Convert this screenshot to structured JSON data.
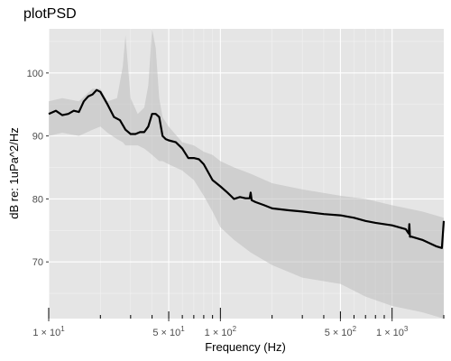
{
  "chart_data": {
    "type": "line",
    "title": "plotPSD",
    "xlabel": "Frequency (Hz)",
    "ylabel": "dB re: 1uPa^2/Hz",
    "x_scale": "log",
    "xlim": [
      10,
      2000
    ],
    "ylim": [
      61,
      107
    ],
    "y_ticks": [
      70,
      80,
      90,
      100
    ],
    "y_tick_labels": [
      "70",
      "80",
      "90",
      "100"
    ],
    "x_major_ticks": [
      10,
      50,
      100,
      500,
      1000
    ],
    "x_tick_labels": [
      {
        "x": 10,
        "mantissa": "1",
        "exp": "1"
      },
      {
        "x": 50,
        "mantissa": "5",
        "exp": "1"
      },
      {
        "x": 100,
        "mantissa": "1",
        "exp": "2"
      },
      {
        "x": 500,
        "mantissa": "5",
        "exp": "2"
      },
      {
        "x": 1000,
        "mantissa": "1",
        "exp": "3"
      }
    ],
    "grid": true,
    "background": "#e5e5e5",
    "series": [
      {
        "role": "median",
        "color": "#000000",
        "x": [
          10,
          11,
          12,
          13,
          14,
          15,
          16,
          17,
          18,
          19,
          20,
          22,
          24,
          26,
          28,
          30,
          32,
          34,
          36,
          38,
          40,
          42,
          44,
          46,
          48,
          50,
          55,
          60,
          65,
          70,
          75,
          80,
          90,
          100,
          110,
          120,
          130,
          140,
          148,
          150,
          152,
          160,
          180,
          200,
          250,
          300,
          400,
          500,
          600,
          700,
          800,
          1000,
          1200,
          1250,
          1260,
          1270,
          1300,
          1500,
          1800,
          1950,
          2000
        ],
        "y": [
          93.5,
          94,
          93.3,
          93.5,
          94,
          93.8,
          95.5,
          96.3,
          96.6,
          97.3,
          97,
          95,
          93,
          92.5,
          91,
          90.3,
          90.3,
          90.6,
          90.6,
          91.5,
          93.5,
          93.5,
          93,
          90,
          89.5,
          89.3,
          89,
          88,
          86.5,
          86.5,
          86.3,
          85.5,
          83,
          82,
          81,
          80,
          80.3,
          80.1,
          80.1,
          81,
          79.8,
          79.5,
          79,
          78.5,
          78.2,
          78,
          77.6,
          77.4,
          77,
          76.5,
          76.2,
          75.8,
          75.2,
          74.5,
          76,
          74,
          74,
          73.5,
          72.5,
          72.2,
          76.5
        ]
      },
      {
        "role": "range-band",
        "color": "#bdbdbd",
        "x": [
          10,
          12,
          15,
          18,
          20,
          22,
          25,
          27,
          28,
          30,
          33,
          36,
          38,
          40,
          42,
          44,
          46,
          50,
          60,
          70,
          80,
          90,
          100,
          120,
          150,
          200,
          300,
          500,
          700,
          1000,
          1500,
          2000
        ],
        "upper": [
          95.5,
          96,
          95.5,
          97.5,
          97.5,
          95.5,
          96,
          101,
          106,
          96,
          93.5,
          94.5,
          98,
          107,
          104,
          96,
          93,
          91.5,
          89,
          88.5,
          87.5,
          87,
          86,
          85,
          84,
          82.5,
          81.5,
          80.5,
          80,
          79,
          78,
          77
        ],
        "lower": [
          90,
          90.5,
          90,
          91,
          91.5,
          90.5,
          89.5,
          89,
          88.5,
          88.5,
          88.5,
          88,
          87.5,
          87,
          86.5,
          86,
          86,
          85.5,
          84.5,
          83,
          80.5,
          78,
          75.5,
          73.5,
          71.5,
          69.5,
          67.5,
          66.5,
          64.5,
          63,
          62,
          61
        ]
      }
    ]
  }
}
